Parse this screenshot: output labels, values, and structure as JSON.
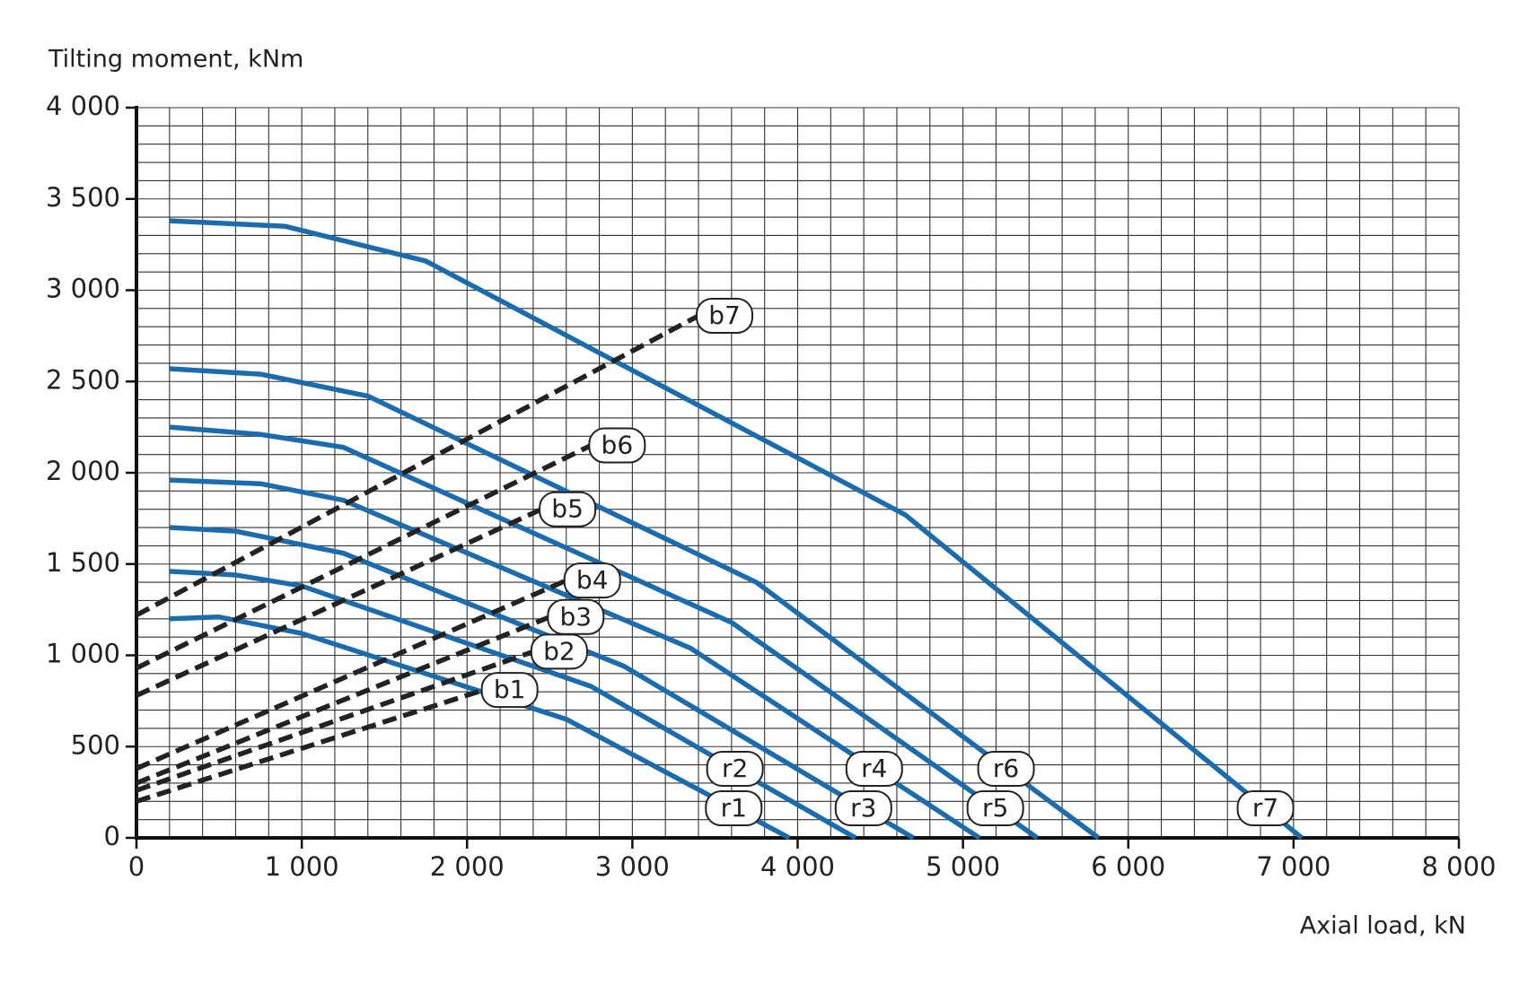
{
  "chart_data": {
    "type": "line",
    "ylabel": "Tilting moment, kNm",
    "xlabel": "Axial load, kN",
    "xlim": [
      0,
      8000
    ],
    "ylim": [
      0,
      4000
    ],
    "xticks": [
      0,
      {
        "value": 1000,
        "label": "1 000"
      },
      {
        "value": 2000,
        "label": "2 000"
      },
      {
        "value": 3000,
        "label": "3 000"
      },
      {
        "value": 4000,
        "label": "4 000"
      },
      {
        "value": 5000,
        "label": "5 000"
      },
      {
        "value": 6000,
        "label": "6 000"
      },
      {
        "value": 7000,
        "label": "7 000"
      },
      {
        "value": 8000,
        "label": "8 000"
      }
    ],
    "yticks": [
      0,
      500,
      {
        "value": 1000,
        "label": "1 000"
      },
      {
        "value": 1500,
        "label": "1 500"
      },
      {
        "value": 2000,
        "label": "2 000"
      },
      {
        "value": 2500,
        "label": "2 500"
      },
      {
        "value": 3000,
        "label": "3 000"
      },
      {
        "value": 3500,
        "label": "3 500"
      },
      {
        "value": 4000,
        "label": "4 000"
      }
    ],
    "grid": true,
    "xgrid": [
      0,
      200,
      400,
      600,
      800,
      1000,
      1200,
      1400,
      1600,
      1800,
      2000,
      2200,
      2400,
      2600,
      2800,
      3000,
      3200,
      3400,
      3600,
      3800,
      4000,
      4200,
      4400,
      4600,
      4800,
      5000,
      5200,
      5400,
      5600,
      5800,
      6000,
      6200,
      6400,
      6600,
      6800,
      7000,
      7200,
      7400,
      7600,
      7800,
      8000
    ],
    "ygrid": [
      0,
      100,
      200,
      300,
      400,
      500,
      600,
      700,
      800,
      900,
      1000,
      1100,
      1200,
      1300,
      1400,
      1500,
      1600,
      1700,
      1800,
      1900,
      2000,
      2100,
      2200,
      2300,
      2400,
      2500,
      2600,
      2700,
      2800,
      2900,
      3000,
      3100,
      3200,
      3300,
      3400,
      3500,
      3600,
      3700,
      3800,
      3900,
      4000
    ],
    "series": [
      {
        "name": "r1",
        "color": "#1b6cae",
        "dashed": false,
        "x": [
          200,
          500,
          1000,
          2600,
          3950
        ],
        "values": [
          1200,
          1210,
          1120,
          650,
          0
        ]
      },
      {
        "name": "r2",
        "color": "#1b6cae",
        "dashed": false,
        "x": [
          200,
          600,
          1000,
          2750,
          4350
        ],
        "values": [
          1460,
          1440,
          1380,
          830,
          0
        ]
      },
      {
        "name": "r3",
        "color": "#1b6cae",
        "dashed": false,
        "x": [
          200,
          600,
          1250,
          2950,
          4700
        ],
        "values": [
          1700,
          1680,
          1560,
          940,
          0
        ]
      },
      {
        "name": "r4",
        "color": "#1b6cae",
        "dashed": false,
        "x": [
          200,
          750,
          1250,
          3350,
          5100
        ],
        "values": [
          1960,
          1940,
          1850,
          1040,
          0
        ]
      },
      {
        "name": "r5",
        "color": "#1b6cae",
        "dashed": false,
        "x": [
          200,
          750,
          1250,
          3600,
          5450
        ],
        "values": [
          2250,
          2210,
          2140,
          1180,
          0
        ]
      },
      {
        "name": "r6",
        "color": "#1b6cae",
        "dashed": false,
        "x": [
          200,
          750,
          1400,
          3750,
          5820
        ],
        "values": [
          2570,
          2540,
          2420,
          1400,
          0
        ]
      },
      {
        "name": "r7",
        "color": "#1b6cae",
        "dashed": false,
        "x": [
          200,
          900,
          1750,
          4650,
          7050
        ],
        "values": [
          3380,
          3350,
          3160,
          1770,
          0
        ]
      },
      {
        "name": "b1",
        "color": "#222222",
        "dashed": true,
        "x": [
          0,
          2100
        ],
        "values": [
          200,
          810
        ]
      },
      {
        "name": "b2",
        "color": "#222222",
        "dashed": true,
        "x": [
          0,
          2400
        ],
        "values": [
          260,
          1020
        ]
      },
      {
        "name": "b3",
        "color": "#222222",
        "dashed": true,
        "x": [
          0,
          2500
        ],
        "values": [
          300,
          1210
        ]
      },
      {
        "name": "b4",
        "color": "#222222",
        "dashed": true,
        "x": [
          0,
          2600
        ],
        "values": [
          380,
          1410
        ]
      },
      {
        "name": "b5",
        "color": "#222222",
        "dashed": true,
        "x": [
          0,
          2450
        ],
        "values": [
          780,
          1800
        ]
      },
      {
        "name": "b6",
        "color": "#222222",
        "dashed": true,
        "x": [
          0,
          2750
        ],
        "values": [
          930,
          2150
        ]
      },
      {
        "name": "b7",
        "color": "#222222",
        "dashed": true,
        "x": [
          0,
          3400
        ],
        "values": [
          1220,
          2860
        ]
      }
    ]
  }
}
